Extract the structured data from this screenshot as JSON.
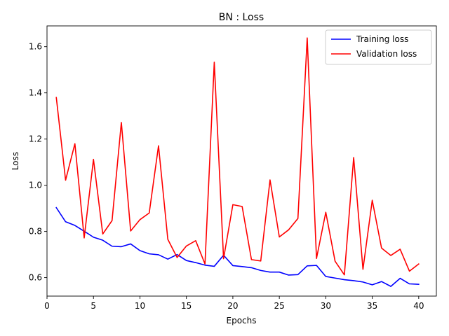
{
  "chart_data": {
    "type": "line",
    "title": "BN : Loss",
    "xlabel": "Epochs",
    "ylabel": "Loss",
    "xlim": [
      0,
      41.9
    ],
    "ylim": [
      0.52,
      1.69
    ],
    "xticks": [
      0,
      5,
      10,
      15,
      20,
      25,
      30,
      35,
      40
    ],
    "yticks": [
      0.6,
      0.8,
      1.0,
      1.2,
      1.4,
      1.6
    ],
    "ytick_labels": [
      "0.6",
      "0.8",
      "1.0",
      "1.2",
      "1.4",
      "1.6"
    ],
    "grid": false,
    "legend_position": "top-right",
    "x": [
      1,
      2,
      3,
      4,
      5,
      6,
      7,
      8,
      9,
      10,
      11,
      12,
      13,
      14,
      15,
      16,
      17,
      18,
      19,
      20,
      21,
      22,
      23,
      24,
      25,
      26,
      27,
      28,
      29,
      30,
      31,
      32,
      33,
      34,
      35,
      36,
      37,
      38,
      39,
      40
    ],
    "series": [
      {
        "name": "Training loss",
        "color": "#0000ff",
        "values": [
          0.903,
          0.842,
          0.826,
          0.801,
          0.775,
          0.762,
          0.736,
          0.734,
          0.746,
          0.717,
          0.703,
          0.699,
          0.68,
          0.7,
          0.674,
          0.665,
          0.654,
          0.649,
          0.697,
          0.652,
          0.648,
          0.643,
          0.631,
          0.624,
          0.624,
          0.611,
          0.613,
          0.651,
          0.653,
          0.605,
          0.598,
          0.591,
          0.587,
          0.581,
          0.569,
          0.583,
          0.562,
          0.597,
          0.573,
          0.571
        ]
      },
      {
        "name": "Validation loss",
        "color": "#ff0000",
        "values": [
          1.38,
          1.022,
          1.18,
          0.772,
          1.112,
          0.789,
          0.847,
          1.272,
          0.802,
          0.851,
          0.88,
          1.171,
          0.766,
          0.687,
          0.737,
          0.76,
          0.659,
          1.533,
          0.682,
          0.916,
          0.908,
          0.678,
          0.672,
          1.023,
          0.776,
          0.807,
          0.856,
          1.638,
          0.683,
          0.883,
          0.671,
          0.612,
          1.12,
          0.636,
          0.935,
          0.728,
          0.696,
          0.723,
          0.628,
          0.659
        ]
      }
    ]
  }
}
